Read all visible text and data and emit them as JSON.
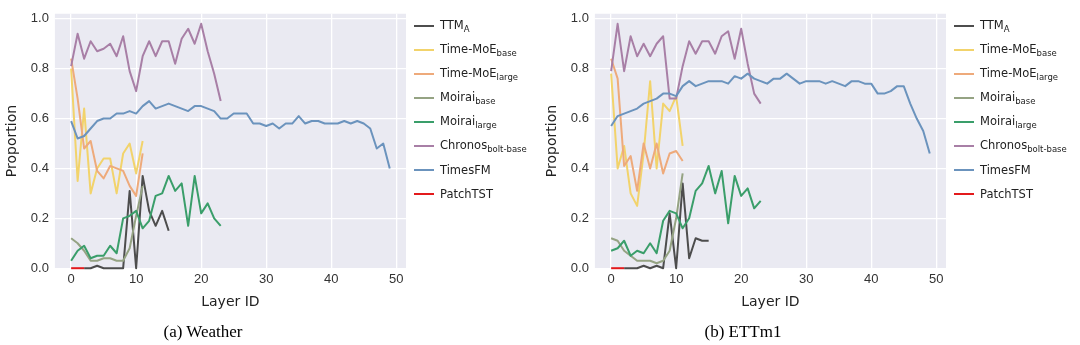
{
  "chart_data": [
    {
      "type": "line",
      "title": "(a) Weather",
      "xlabel": "Layer ID",
      "ylabel": "Proportion",
      "grid": true,
      "legend": "right",
      "xlim": [
        -2.5,
        51.5
      ],
      "xticks": [
        0,
        10,
        20,
        30,
        40,
        50
      ],
      "ylim": [
        0,
        1.02
      ],
      "yticks": [
        {
          "value": 0,
          "label": "0.0"
        },
        {
          "value": 0.2,
          "label": "0.2"
        },
        {
          "value": 0.4,
          "label": "0.4"
        },
        {
          "value": 0.6,
          "label": "0.6"
        },
        {
          "value": 0.8,
          "label": "0.8"
        },
        {
          "value": 1,
          "label": "1.0"
        }
      ],
      "x": [
        0,
        1,
        2,
        3,
        4,
        5,
        6,
        7,
        8,
        9,
        10,
        11,
        12,
        13,
        14,
        15,
        16,
        17,
        18,
        19,
        20,
        21,
        22,
        23,
        24,
        25,
        26,
        27,
        28,
        29,
        30,
        31,
        32,
        33,
        34,
        35,
        36,
        37,
        38,
        39,
        40,
        41,
        42,
        43,
        44,
        45,
        46,
        47,
        48,
        49
      ],
      "series": [
        {
          "name": "TTM$_{A}$",
          "color": "#4d4d4d",
          "x": [
            2,
            3,
            4,
            5,
            6,
            7,
            8,
            9,
            10,
            11,
            12,
            13,
            14,
            15
          ],
          "values": [
            0,
            0,
            0.01,
            0,
            0,
            0,
            0,
            0.31,
            0,
            0.37,
            0.23,
            0.17,
            0.23,
            0.15
          ]
        },
        {
          "name": "Time-MoE$_{base}$",
          "color": "#f2d36b",
          "x": [
            0,
            1,
            2,
            3,
            4,
            5,
            6,
            7,
            8,
            9,
            10,
            11
          ],
          "values": [
            0.8,
            0.35,
            0.64,
            0.3,
            0.4,
            0.44,
            0.44,
            0.3,
            0.46,
            0.5,
            0.38,
            0.51
          ]
        },
        {
          "name": "Time-MoE$_{large}$",
          "color": "#eeaa7b",
          "x": [
            0,
            1,
            2,
            3,
            4,
            5,
            6,
            7,
            8,
            9,
            10,
            11
          ],
          "values": [
            0.84,
            0.68,
            0.48,
            0.51,
            0.39,
            0.36,
            0.41,
            0.4,
            0.39,
            0.33,
            0.29,
            0.46
          ]
        },
        {
          "name": "Moirai$_{base}$",
          "color": "#95a383",
          "x": [
            0,
            1,
            2,
            3,
            4,
            5,
            6,
            7,
            8,
            9,
            10,
            11
          ],
          "values": [
            0.12,
            0.1,
            0.07,
            0.03,
            0.03,
            0.04,
            0.04,
            0.03,
            0.03,
            0.08,
            0.21,
            0.33
          ]
        },
        {
          "name": "Moirai$_{large}$",
          "color": "#3a9e6a",
          "x": [
            0,
            1,
            2,
            3,
            4,
            5,
            6,
            7,
            8,
            9,
            10,
            11,
            12,
            13,
            14,
            15,
            16,
            17,
            18,
            19,
            20,
            21,
            22,
            23
          ],
          "values": [
            0.03,
            0.07,
            0.09,
            0.04,
            0.05,
            0.05,
            0.09,
            0.06,
            0.2,
            0.21,
            0.23,
            0.16,
            0.19,
            0.29,
            0.3,
            0.37,
            0.31,
            0.34,
            0.17,
            0.37,
            0.22,
            0.26,
            0.2,
            0.17
          ]
        },
        {
          "name": "Chronos$_{bolt-base}$",
          "color": "#a87fa6",
          "x": [
            0,
            1,
            2,
            3,
            4,
            5,
            6,
            7,
            8,
            9,
            10,
            11,
            12,
            13,
            14,
            15,
            16,
            17,
            18,
            19,
            20,
            21,
            22,
            23
          ],
          "values": [
            0.81,
            0.94,
            0.84,
            0.91,
            0.87,
            0.88,
            0.9,
            0.85,
            0.93,
            0.79,
            0.71,
            0.85,
            0.91,
            0.85,
            0.91,
            0.91,
            0.82,
            0.92,
            0.96,
            0.9,
            0.98,
            0.87,
            0.78,
            0.67
          ]
        },
        {
          "name": "TimesFM",
          "color": "#6b93bd",
          "values": [
            0.59,
            0.52,
            0.53,
            0.56,
            0.59,
            0.6,
            0.6,
            0.62,
            0.62,
            0.63,
            0.62,
            0.65,
            0.67,
            0.64,
            0.65,
            0.66,
            0.65,
            0.64,
            0.63,
            0.65,
            0.65,
            0.64,
            0.63,
            0.6,
            0.6,
            0.62,
            0.62,
            0.62,
            0.58,
            0.58,
            0.57,
            0.58,
            0.56,
            0.58,
            0.58,
            0.61,
            0.58,
            0.59,
            0.59,
            0.58,
            0.58,
            0.58,
            0.59,
            0.58,
            0.59,
            0.58,
            0.56,
            0.48,
            0.5,
            0.4
          ]
        },
        {
          "name": "PatchTST",
          "color": "#e31a1c",
          "x": [
            0,
            1,
            2
          ],
          "values": [
            0,
            0,
            0
          ]
        }
      ]
    },
    {
      "type": "line",
      "title": "(b) ETTm1",
      "xlabel": "Layer ID",
      "ylabel": "Proportion",
      "grid": true,
      "legend": "right",
      "xlim": [
        -2.5,
        51.5
      ],
      "xticks": [
        0,
        10,
        20,
        30,
        40,
        50
      ],
      "ylim": [
        0,
        1.02
      ],
      "yticks": [
        {
          "value": 0,
          "label": "0.0"
        },
        {
          "value": 0.2,
          "label": "0.2"
        },
        {
          "value": 0.4,
          "label": "0.4"
        },
        {
          "value": 0.6,
          "label": "0.6"
        },
        {
          "value": 0.8,
          "label": "0.8"
        },
        {
          "value": 1,
          "label": "1.0"
        }
      ],
      "x": [
        0,
        1,
        2,
        3,
        4,
        5,
        6,
        7,
        8,
        9,
        10,
        11,
        12,
        13,
        14,
        15,
        16,
        17,
        18,
        19,
        20,
        21,
        22,
        23,
        24,
        25,
        26,
        27,
        28,
        29,
        30,
        31,
        32,
        33,
        34,
        35,
        36,
        37,
        38,
        39,
        40,
        41,
        42,
        43,
        44,
        45,
        46,
        47,
        48,
        49
      ],
      "series": [
        {
          "name": "TTM$_{A}$",
          "color": "#4d4d4d",
          "x": [
            2,
            3,
            4,
            5,
            6,
            7,
            8,
            9,
            10,
            11,
            12,
            13,
            14,
            15
          ],
          "values": [
            0,
            0,
            0,
            0.01,
            0,
            0.01,
            0,
            0.22,
            0,
            0.34,
            0.04,
            0.12,
            0.11,
            0.11
          ]
        },
        {
          "name": "Time-MoE$_{base}$",
          "color": "#f2d36b",
          "x": [
            0,
            1,
            2,
            3,
            4,
            5,
            6,
            7,
            8,
            9,
            10,
            11
          ],
          "values": [
            0.78,
            0.4,
            0.49,
            0.3,
            0.25,
            0.46,
            0.75,
            0.4,
            0.66,
            0.63,
            0.69,
            0.49
          ]
        },
        {
          "name": "Time-MoE$_{large}$",
          "color": "#eeaa7b",
          "x": [
            0,
            1,
            2,
            3,
            4,
            5,
            6,
            7,
            8,
            9,
            10,
            11
          ],
          "values": [
            0.84,
            0.76,
            0.41,
            0.45,
            0.31,
            0.5,
            0.4,
            0.5,
            0.38,
            0.46,
            0.47,
            0.43
          ]
        },
        {
          "name": "Moirai$_{base}$",
          "color": "#95a383",
          "x": [
            0,
            1,
            2,
            3,
            4,
            5,
            6,
            7,
            8,
            9,
            10,
            11
          ],
          "values": [
            0.12,
            0.11,
            0.07,
            0.05,
            0.03,
            0.03,
            0.03,
            0.02,
            0.03,
            0.07,
            0.2,
            0.38
          ]
        },
        {
          "name": "Moirai$_{large}$",
          "color": "#3a9e6a",
          "x": [
            0,
            1,
            2,
            3,
            4,
            5,
            6,
            7,
            8,
            9,
            10,
            11,
            12,
            13,
            14,
            15,
            16,
            17,
            18,
            19,
            20,
            21,
            22,
            23
          ],
          "values": [
            0.07,
            0.08,
            0.11,
            0.05,
            0.07,
            0.06,
            0.1,
            0.06,
            0.19,
            0.23,
            0.22,
            0.16,
            0.2,
            0.31,
            0.34,
            0.41,
            0.3,
            0.39,
            0.18,
            0.37,
            0.29,
            0.32,
            0.24,
            0.27
          ]
        },
        {
          "name": "Chronos$_{bolt-base}$",
          "color": "#a87fa6",
          "x": [
            0,
            1,
            2,
            3,
            4,
            5,
            6,
            7,
            8,
            9,
            10,
            11,
            12,
            13,
            14,
            15,
            16,
            17,
            18,
            19,
            20,
            21,
            22,
            23
          ],
          "values": [
            0.79,
            0.98,
            0.79,
            0.93,
            0.85,
            0.9,
            0.85,
            0.9,
            0.93,
            0.68,
            0.68,
            0.81,
            0.91,
            0.86,
            0.91,
            0.91,
            0.86,
            0.93,
            0.95,
            0.84,
            0.96,
            0.82,
            0.7,
            0.66
          ]
        },
        {
          "name": "TimesFM",
          "color": "#6b93bd",
          "values": [
            0.57,
            0.61,
            0.62,
            0.63,
            0.64,
            0.66,
            0.67,
            0.68,
            0.7,
            0.7,
            0.69,
            0.73,
            0.75,
            0.73,
            0.74,
            0.75,
            0.75,
            0.75,
            0.74,
            0.77,
            0.76,
            0.78,
            0.76,
            0.75,
            0.74,
            0.76,
            0.76,
            0.78,
            0.76,
            0.74,
            0.75,
            0.75,
            0.75,
            0.74,
            0.75,
            0.74,
            0.73,
            0.75,
            0.75,
            0.74,
            0.74,
            0.7,
            0.7,
            0.71,
            0.73,
            0.73,
            0.66,
            0.6,
            0.55,
            0.46
          ]
        },
        {
          "name": "PatchTST",
          "color": "#e31a1c",
          "x": [
            0,
            1,
            2
          ],
          "values": [
            0,
            0,
            0
          ]
        }
      ]
    }
  ]
}
